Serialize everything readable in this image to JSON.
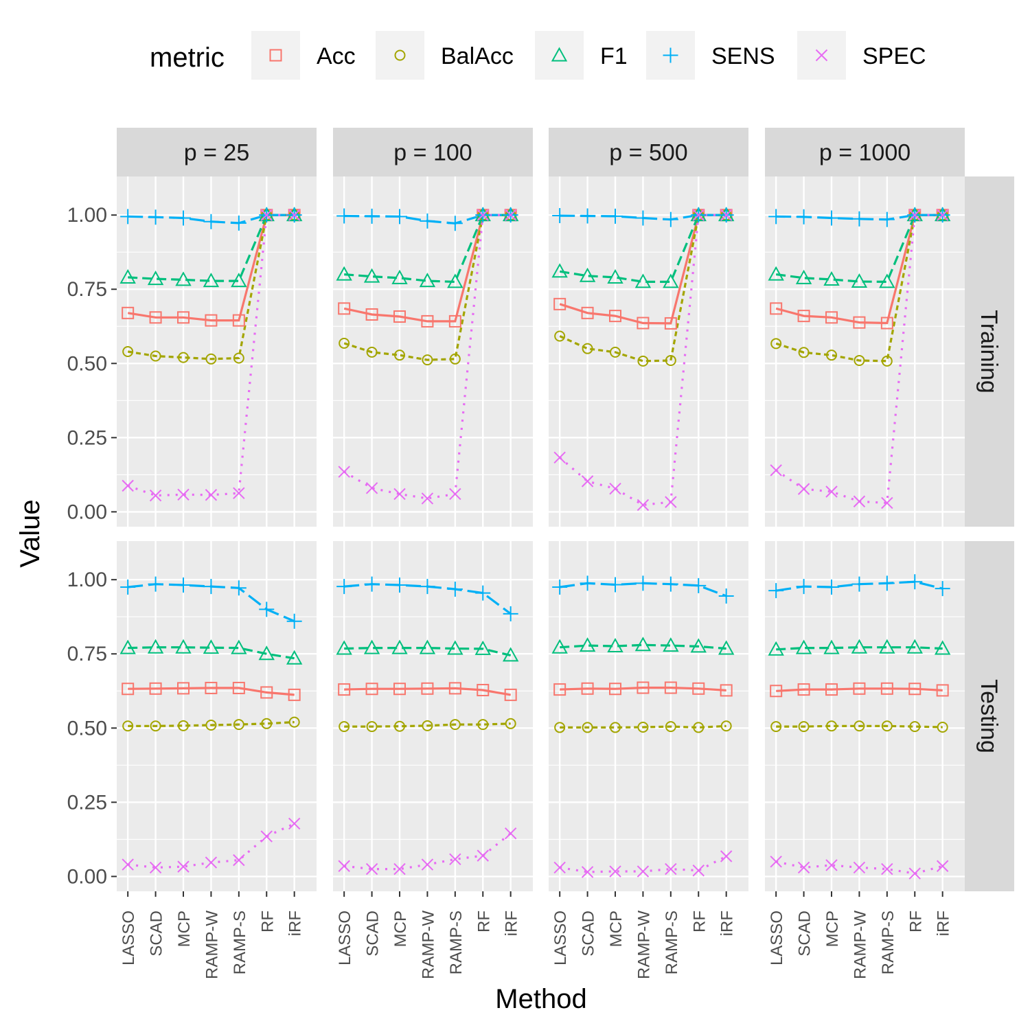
{
  "chart_data": {
    "type": "line",
    "xlabel": "Method",
    "ylabel": "Value",
    "categories": [
      "LASSO",
      "SCAD",
      "MCP",
      "RAMP-W",
      "RAMP-S",
      "RF",
      "iRF"
    ],
    "yticks": [
      "0.00",
      "0.25",
      "0.50",
      "0.75",
      "1.00"
    ],
    "ylim": [
      -0.05,
      1.13
    ],
    "grid": true,
    "legend": {
      "title": "metric",
      "position": "top",
      "entries": [
        "Acc",
        "BalAcc",
        "F1",
        "SENS",
        "SPEC"
      ]
    },
    "metric_colors": {
      "Acc": "#F8766D",
      "BalAcc": "#A3A500",
      "F1": "#00BF7D",
      "SENS": "#00B0F6",
      "SPEC": "#E76BF3"
    },
    "metric_shapes": {
      "Acc": "square",
      "BalAcc": "circle",
      "F1": "triangle",
      "SENS": "plus",
      "SPEC": "cross"
    },
    "metric_linetypes": {
      "Acc": "solid",
      "BalAcc": "dashed-short",
      "F1": "dashed",
      "SENS": "long-dash",
      "SPEC": "dotted"
    },
    "col_facets": [
      "p = 25",
      "p = 100",
      "p = 500",
      "p = 1000"
    ],
    "row_facets": [
      "Training",
      "Testing"
    ],
    "panels": [
      {
        "row": "Training",
        "col": "p = 25",
        "series": {
          "Acc": [
            0.67,
            0.655,
            0.655,
            0.645,
            0.645,
            1.0,
            1.0
          ],
          "BalAcc": [
            0.54,
            0.525,
            0.52,
            0.515,
            0.518,
            1.0,
            1.0
          ],
          "F1": [
            0.79,
            0.785,
            0.782,
            0.778,
            0.778,
            1.0,
            1.0
          ],
          "SENS": [
            0.995,
            0.993,
            0.99,
            0.978,
            0.973,
            1.0,
            1.0
          ],
          "SPEC": [
            0.088,
            0.055,
            0.058,
            0.057,
            0.063,
            1.0,
            1.0
          ]
        }
      },
      {
        "row": "Training",
        "col": "p = 100",
        "series": {
          "Acc": [
            0.685,
            0.665,
            0.658,
            0.642,
            0.642,
            1.0,
            1.0
          ],
          "BalAcc": [
            0.568,
            0.538,
            0.528,
            0.512,
            0.515,
            1.0,
            1.0
          ],
          "F1": [
            0.8,
            0.793,
            0.788,
            0.778,
            0.775,
            1.0,
            1.0
          ],
          "SENS": [
            0.997,
            0.996,
            0.995,
            0.98,
            0.972,
            1.0,
            1.0
          ],
          "SPEC": [
            0.135,
            0.08,
            0.06,
            0.045,
            0.06,
            1.0,
            1.0
          ]
        }
      },
      {
        "row": "Training",
        "col": "p = 500",
        "series": {
          "Acc": [
            0.7,
            0.67,
            0.66,
            0.636,
            0.635,
            1.0,
            1.0
          ],
          "BalAcc": [
            0.592,
            0.55,
            0.538,
            0.508,
            0.51,
            1.0,
            1.0
          ],
          "F1": [
            0.81,
            0.795,
            0.79,
            0.775,
            0.775,
            1.0,
            1.0
          ],
          "SENS": [
            0.998,
            0.997,
            0.996,
            0.99,
            0.985,
            1.0,
            1.0
          ],
          "SPEC": [
            0.183,
            0.103,
            0.078,
            0.023,
            0.033,
            1.0,
            1.0
          ]
        }
      },
      {
        "row": "Training",
        "col": "p = 1000",
        "series": {
          "Acc": [
            0.685,
            0.66,
            0.655,
            0.638,
            0.636,
            1.0,
            1.0
          ],
          "BalAcc": [
            0.567,
            0.537,
            0.528,
            0.51,
            0.508,
            1.0,
            1.0
          ],
          "F1": [
            0.8,
            0.788,
            0.783,
            0.776,
            0.775,
            1.0,
            1.0
          ],
          "SENS": [
            0.995,
            0.994,
            0.99,
            0.987,
            0.985,
            1.0,
            1.0
          ],
          "SPEC": [
            0.14,
            0.077,
            0.068,
            0.035,
            0.03,
            1.0,
            1.0
          ]
        }
      },
      {
        "row": "Testing",
        "col": "p = 25",
        "series": {
          "Acc": [
            0.632,
            0.633,
            0.634,
            0.635,
            0.635,
            0.62,
            0.612
          ],
          "BalAcc": [
            0.507,
            0.507,
            0.508,
            0.51,
            0.512,
            0.515,
            0.52
          ],
          "F1": [
            0.77,
            0.772,
            0.772,
            0.771,
            0.77,
            0.75,
            0.735
          ],
          "SENS": [
            0.975,
            0.985,
            0.982,
            0.977,
            0.972,
            0.9,
            0.86
          ],
          "SPEC": [
            0.04,
            0.03,
            0.033,
            0.047,
            0.055,
            0.135,
            0.178
          ]
        }
      },
      {
        "row": "Testing",
        "col": "p = 100",
        "series": {
          "Acc": [
            0.63,
            0.632,
            0.632,
            0.633,
            0.634,
            0.628,
            0.612
          ],
          "BalAcc": [
            0.505,
            0.505,
            0.506,
            0.508,
            0.512,
            0.512,
            0.515
          ],
          "F1": [
            0.768,
            0.77,
            0.77,
            0.77,
            0.768,
            0.767,
            0.745
          ],
          "SENS": [
            0.977,
            0.985,
            0.982,
            0.977,
            0.968,
            0.955,
            0.885
          ],
          "SPEC": [
            0.035,
            0.025,
            0.025,
            0.04,
            0.058,
            0.07,
            0.145
          ]
        }
      },
      {
        "row": "Testing",
        "col": "p = 500",
        "series": {
          "Acc": [
            0.63,
            0.633,
            0.632,
            0.636,
            0.636,
            0.633,
            0.627
          ],
          "BalAcc": [
            0.502,
            0.502,
            0.502,
            0.503,
            0.505,
            0.502,
            0.507
          ],
          "F1": [
            0.772,
            0.778,
            0.776,
            0.78,
            0.778,
            0.775,
            0.768
          ],
          "SENS": [
            0.975,
            0.988,
            0.983,
            0.988,
            0.985,
            0.98,
            0.945
          ],
          "SPEC": [
            0.03,
            0.015,
            0.017,
            0.017,
            0.025,
            0.02,
            0.068
          ]
        }
      },
      {
        "row": "Testing",
        "col": "p = 1000",
        "series": {
          "Acc": [
            0.625,
            0.63,
            0.63,
            0.633,
            0.633,
            0.632,
            0.627
          ],
          "BalAcc": [
            0.505,
            0.505,
            0.507,
            0.507,
            0.507,
            0.505,
            0.503
          ],
          "F1": [
            0.765,
            0.77,
            0.77,
            0.772,
            0.772,
            0.772,
            0.768
          ],
          "SENS": [
            0.963,
            0.977,
            0.975,
            0.985,
            0.988,
            0.993,
            0.97
          ],
          "SPEC": [
            0.05,
            0.03,
            0.038,
            0.03,
            0.025,
            0.01,
            0.035
          ]
        }
      }
    ]
  }
}
